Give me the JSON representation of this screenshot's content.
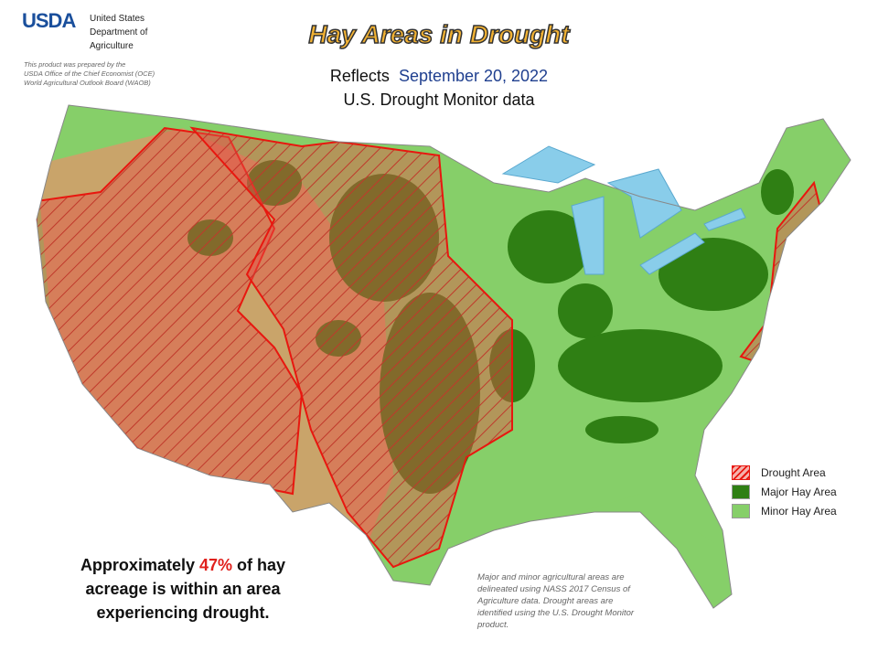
{
  "header": {
    "agency_abbr": "USDA",
    "agency_name": [
      "United States",
      "Department of",
      "Agriculture"
    ],
    "credit": [
      "This product was prepared by the",
      "USDA Office of the Chief Economist (OCE)",
      "World Agricultural Outlook Board (WAOB)"
    ]
  },
  "title": "Hay Areas in Drought",
  "subtitle": {
    "prefix": "Reflects",
    "date": "September 20, 2022",
    "line2": "U.S. Drought Monitor data"
  },
  "legend": [
    {
      "label": "Drought Area"
    },
    {
      "label": "Major Hay Area"
    },
    {
      "label": "Minor Hay Area"
    }
  ],
  "statement": {
    "before": "Approximately",
    "percent": "47%",
    "after": "of hay",
    "line2": "acreage is within an area",
    "line3": "experiencing drought."
  },
  "note": [
    "Major and minor agricultural areas are",
    "delineated using NASS 2017 Census of",
    "Agriculture data.  Drought areas are",
    "identified using the U.S. Drought Monitor",
    "product."
  ]
}
